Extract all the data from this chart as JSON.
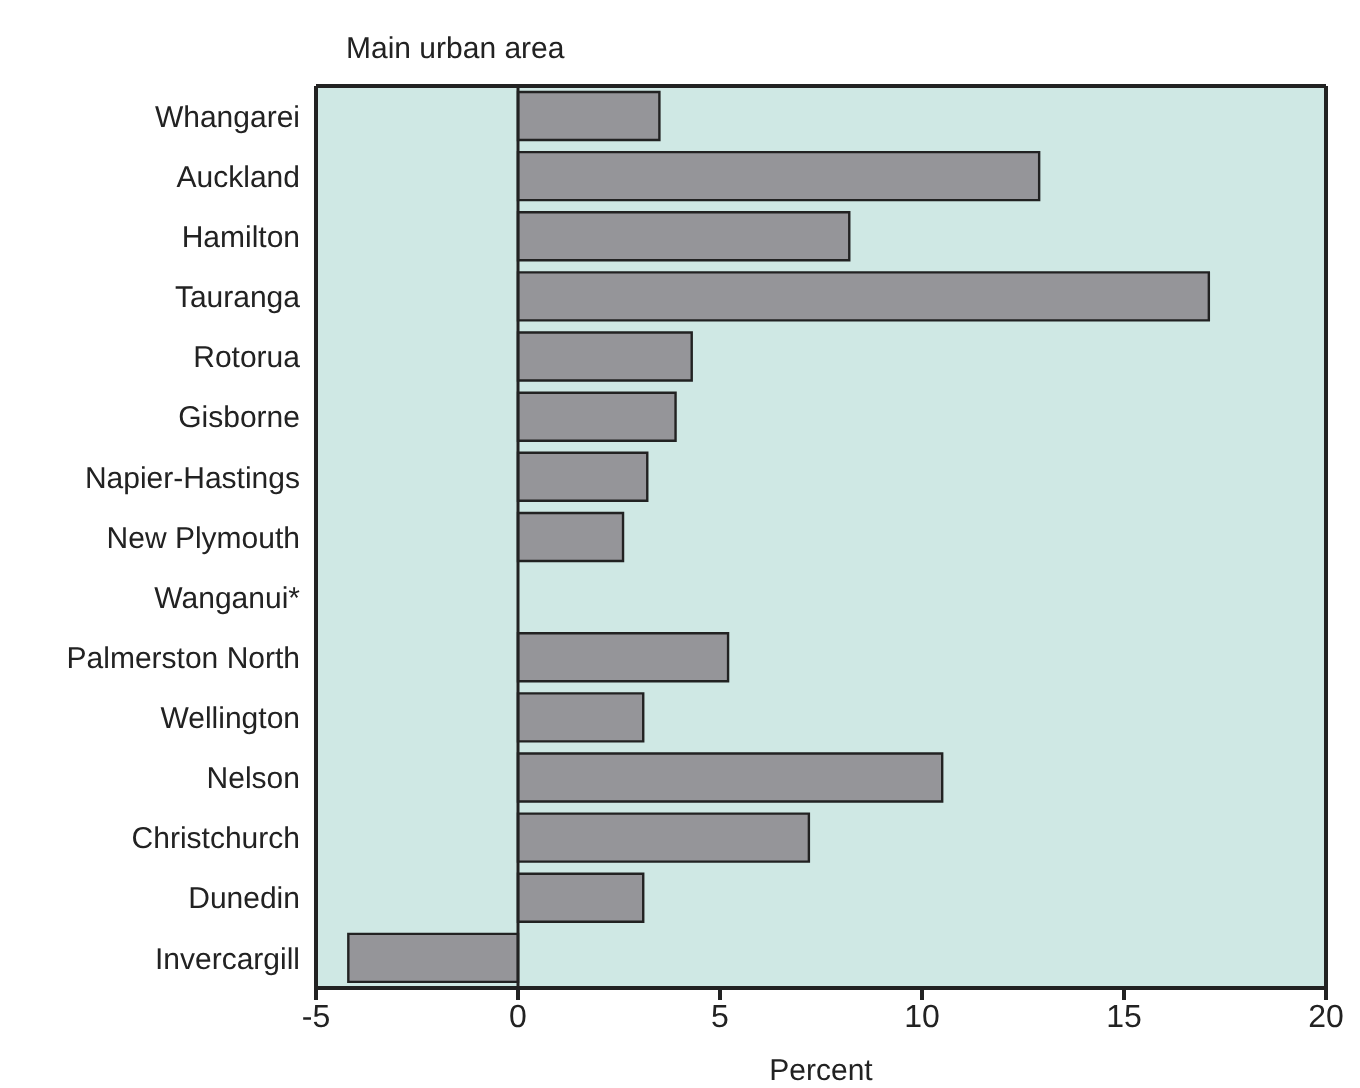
{
  "chart_data": {
    "type": "bar",
    "orientation": "horizontal",
    "ylabel": "Main urban area",
    "xlabel": "Percent",
    "categories": [
      "Whangarei",
      "Auckland",
      "Hamilton",
      "Tauranga",
      "Rotorua",
      "Gisborne",
      "Napier-Hastings",
      "New Plymouth",
      "Wanganui*",
      "Palmerston North",
      "Wellington",
      "Nelson",
      "Christchurch",
      "Dunedin",
      "Invercargill"
    ],
    "values": [
      3.5,
      12.9,
      8.2,
      17.1,
      4.3,
      3.9,
      3.2,
      2.6,
      0,
      5.2,
      3.1,
      10.5,
      7.2,
      3.1,
      -4.2
    ],
    "color": "#959599",
    "xlim": [
      -5,
      20
    ],
    "xticks": [
      -5,
      0,
      5,
      10,
      15,
      20
    ],
    "ref_lines": [
      {
        "axis": "x",
        "value": 0,
        "color": "#222222"
      }
    ],
    "grid": false
  }
}
